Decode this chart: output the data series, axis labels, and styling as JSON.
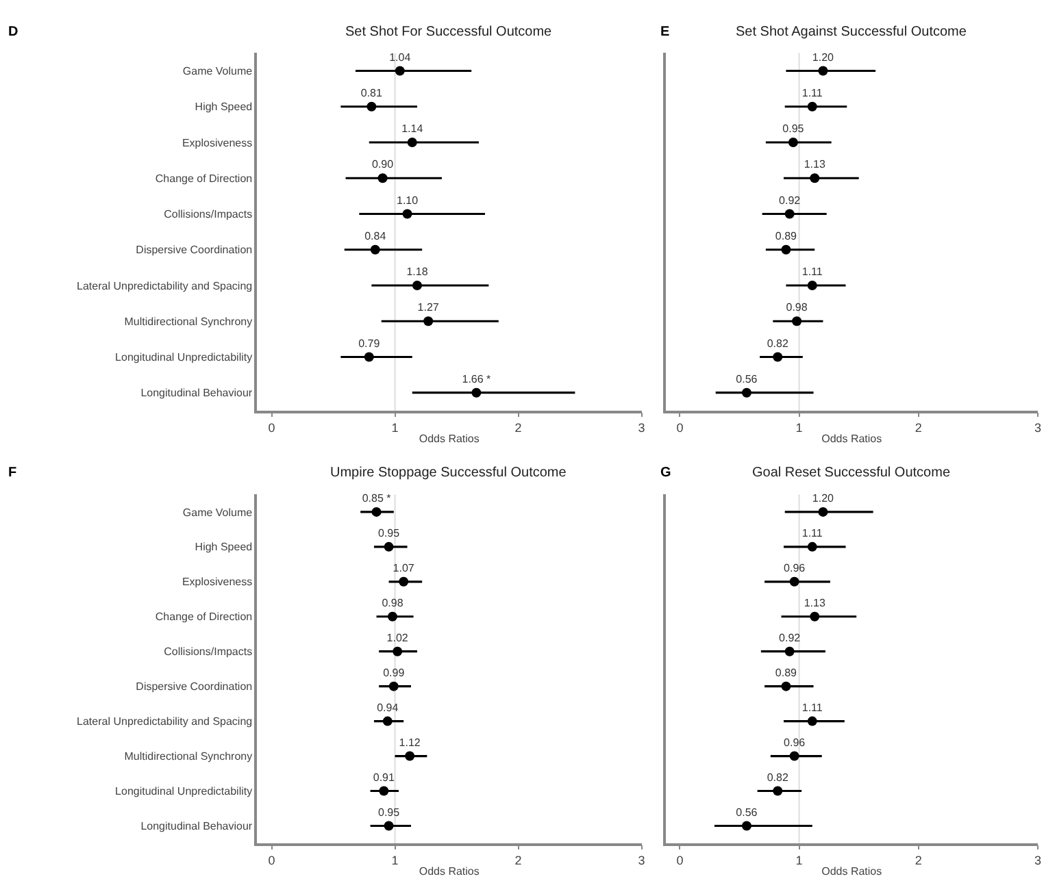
{
  "chart_data": [
    {
      "type": "scatter",
      "title": "Set Shot For Successful Outcome",
      "xlabel": "Odds Ratios",
      "annotations": [
        "D"
      ],
      "categories": [
        "Game Volume",
        "High Speed",
        "Explosiveness",
        "Change of Direction",
        "Collisions/Impacts",
        "Dispersive Coordination",
        "Lateral Unpredictability and Spacing",
        "Multidirectional Synchrony",
        "Longitudinal Unpredictability",
        "Longitudinal Behaviour"
      ],
      "orientation": "horizontal",
      "series": [
        {
          "color": "#000000",
          "values": [
            1.04,
            0.81,
            1.14,
            0.9,
            1.1,
            0.84,
            1.18,
            1.27,
            0.79,
            1.66
          ],
          "errors": [
            [
              0.68,
              1.62
            ],
            [
              0.56,
              1.18
            ],
            [
              0.79,
              1.68
            ],
            [
              0.6,
              1.38
            ],
            [
              0.71,
              1.73
            ],
            [
              0.59,
              1.22
            ],
            [
              0.81,
              1.76
            ],
            [
              0.89,
              1.84
            ],
            [
              0.56,
              1.14
            ],
            [
              1.14,
              2.46
            ]
          ],
          "value_labels": [
            "1.04",
            "0.81",
            "1.14",
            "0.90",
            "1.10",
            "0.84",
            "1.18",
            "1.27",
            "0.79",
            "1.66 *"
          ]
        }
      ],
      "xlim": [
        -0.12,
        3.0
      ],
      "xticks": [
        0,
        1,
        2,
        3
      ],
      "ref_lines": [
        {
          "axis": "x",
          "value": 1,
          "color": "#dddddd"
        }
      ],
      "marker": "circle",
      "grid": false
    },
    {
      "type": "scatter",
      "title": "Set Shot Against Successful Outcome",
      "xlabel": "Odds Ratios",
      "annotations": [
        "E"
      ],
      "categories": [
        null,
        null,
        null,
        null,
        null,
        null,
        null,
        null,
        null,
        null
      ],
      "orientation": "horizontal",
      "series": [
        {
          "color": "#000000",
          "values": [
            1.2,
            1.11,
            0.95,
            1.13,
            0.92,
            0.89,
            1.11,
            0.98,
            0.82,
            0.56
          ],
          "errors": [
            [
              0.89,
              1.64
            ],
            [
              0.88,
              1.4
            ],
            [
              0.72,
              1.27
            ],
            [
              0.87,
              1.5
            ],
            [
              0.69,
              1.23
            ],
            [
              0.72,
              1.13
            ],
            [
              0.89,
              1.39
            ],
            [
              0.78,
              1.2
            ],
            [
              0.67,
              1.03
            ],
            [
              0.3,
              1.12
            ]
          ],
          "value_labels": [
            "1.20",
            "1.11",
            "0.95",
            "1.13",
            "0.92",
            "0.89",
            "1.11",
            "0.98",
            "0.82",
            "0.56"
          ]
        }
      ],
      "xlim": [
        -0.12,
        3.0
      ],
      "xticks": [
        0,
        1,
        2,
        3
      ],
      "ref_lines": [
        {
          "axis": "x",
          "value": 1,
          "color": "#dddddd"
        }
      ],
      "marker": "circle",
      "grid": false
    },
    {
      "type": "scatter",
      "title": "Umpire Stoppage Successful Outcome",
      "xlabel": "Odds Ratios",
      "annotations": [
        "F"
      ],
      "categories": [
        "Game Volume",
        "High Speed",
        "Explosiveness",
        "Change of Direction",
        "Collisions/Impacts",
        "Dispersive Coordination",
        "Lateral Unpredictability and Spacing",
        "Multidirectional Synchrony",
        "Longitudinal Unpredictability",
        "Longitudinal Behaviour"
      ],
      "orientation": "horizontal",
      "series": [
        {
          "color": "#000000",
          "values": [
            0.85,
            0.95,
            1.07,
            0.98,
            1.02,
            0.99,
            0.94,
            1.12,
            0.91,
            0.95
          ],
          "errors": [
            [
              0.72,
              0.99
            ],
            [
              0.83,
              1.1
            ],
            [
              0.95,
              1.22
            ],
            [
              0.85,
              1.15
            ],
            [
              0.87,
              1.18
            ],
            [
              0.87,
              1.13
            ],
            [
              0.83,
              1.07
            ],
            [
              1.0,
              1.26
            ],
            [
              0.8,
              1.03
            ],
            [
              0.8,
              1.13
            ]
          ],
          "value_labels": [
            "0.85 *",
            "0.95",
            "1.07",
            "0.98",
            "1.02",
            "0.99",
            "0.94",
            "1.12",
            "0.91",
            "0.95"
          ]
        }
      ],
      "xlim": [
        -0.12,
        3.0
      ],
      "xticks": [
        0,
        1,
        2,
        3
      ],
      "ref_lines": [
        {
          "axis": "x",
          "value": 1,
          "color": "#dddddd"
        }
      ],
      "marker": "circle",
      "grid": false
    },
    {
      "type": "scatter",
      "title": "Goal Reset Successful Outcome",
      "xlabel": "Odds Ratios",
      "annotations": [
        "G"
      ],
      "categories": [
        null,
        null,
        null,
        null,
        null,
        null,
        null,
        null,
        null,
        null
      ],
      "orientation": "horizontal",
      "series": [
        {
          "color": "#000000",
          "values": [
            1.2,
            1.11,
            0.96,
            1.13,
            0.92,
            0.89,
            1.11,
            0.96,
            0.82,
            0.56
          ],
          "errors": [
            [
              0.88,
              1.62
            ],
            [
              0.87,
              1.39
            ],
            [
              0.71,
              1.26
            ],
            [
              0.85,
              1.48
            ],
            [
              0.68,
              1.22
            ],
            [
              0.71,
              1.12
            ],
            [
              0.87,
              1.38
            ],
            [
              0.76,
              1.19
            ],
            [
              0.65,
              1.02
            ],
            [
              0.29,
              1.11
            ]
          ],
          "value_labels": [
            "1.20",
            "1.11",
            "0.96",
            "1.13",
            "0.92",
            "0.89",
            "1.11",
            "0.96",
            "0.82",
            "0.56"
          ]
        }
      ],
      "xlim": [
        -0.12,
        3.0
      ],
      "xticks": [
        0,
        1,
        2,
        3
      ],
      "ref_lines": [
        {
          "axis": "x",
          "value": 1,
          "color": "#dddddd"
        }
      ],
      "marker": "circle",
      "grid": false
    }
  ]
}
